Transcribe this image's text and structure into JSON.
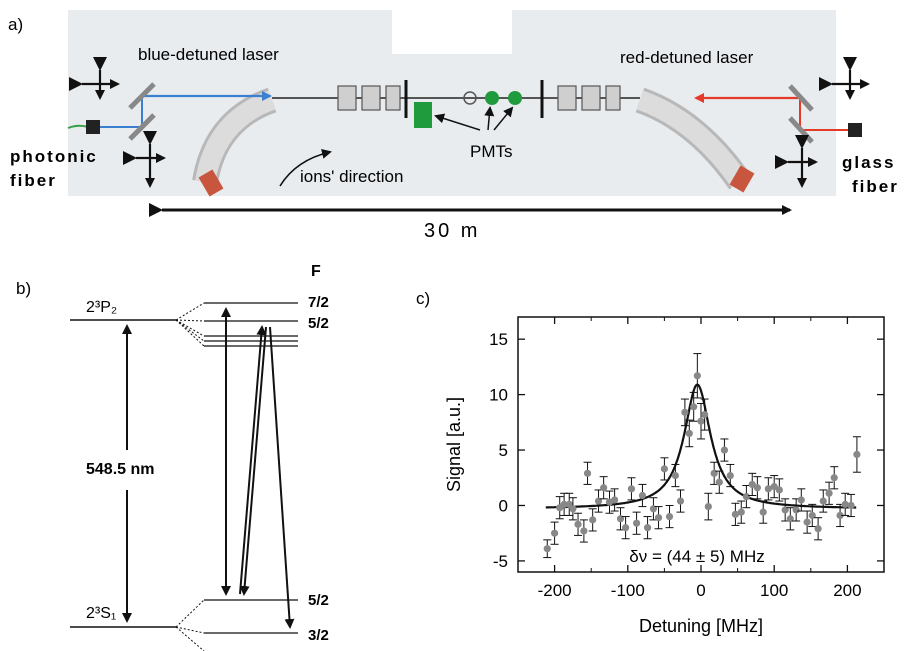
{
  "panel_a": {
    "label": "a)",
    "blue_laser": "blue-detuned laser",
    "red_laser": "red-detuned laser",
    "photonic_fiber": [
      "photonic",
      "fiber"
    ],
    "glass_fiber": [
      "glass",
      "fiber"
    ],
    "pmts": "PMTs",
    "ions_direction": "ions' direction",
    "length": "30 m",
    "colors": {
      "band": "#e9ecef",
      "blue_beam": "#3a7fd0",
      "red_beam": "#e53a2a",
      "pmt": "#1f9a3c"
    }
  },
  "panel_b": {
    "label": "b)",
    "f_header": "F",
    "upper_state": "2³P₂",
    "lower_state": "2³S₁",
    "wavelength": "548.5 nm",
    "upper_levels": [
      "7/2",
      "5/2"
    ],
    "lower_levels": [
      "5/2",
      "3/2"
    ]
  },
  "panel_c": {
    "label": "c)",
    "annotation": "δν = (44 ± 5) MHz"
  },
  "chart_data": {
    "type": "scatter",
    "xlabel": "Detuning [MHz]",
    "ylabel": "Signal [a.u.]",
    "xlim": [
      -250,
      250
    ],
    "ylim": [
      -6,
      17
    ],
    "x_ticks": [
      -200,
      -100,
      0,
      100,
      200
    ],
    "y_ticks": [
      -5,
      0,
      5,
      10,
      15
    ],
    "grid": false,
    "series": [
      {
        "kind": "points_with_error",
        "color": "#888888",
        "x": [
          -210,
          -200,
          -193,
          -187,
          -180,
          -175,
          -168,
          -160,
          -155,
          -148,
          -140,
          -133,
          -125,
          -118,
          -110,
          -103,
          -95,
          -88,
          -80,
          -73,
          -65,
          -58,
          -50,
          -43,
          -35,
          -28,
          -22,
          -16,
          -10,
          -5,
          0,
          5,
          10,
          18,
          25,
          32,
          40,
          47,
          55,
          62,
          70,
          77,
          85,
          92,
          100,
          107,
          115,
          122,
          130,
          137,
          145,
          152,
          160,
          167,
          175,
          182,
          190,
          197,
          205,
          213
        ],
        "y": [
          -3.9,
          -2.5,
          -0.2,
          0.1,
          0.1,
          -0.3,
          -1.7,
          -2.3,
          2.9,
          -1.3,
          0.4,
          1.6,
          0.3,
          0.5,
          -1.2,
          -2.0,
          1.5,
          -1.6,
          0.9,
          -2.0,
          -0.3,
          -1.1,
          3.3,
          -1.0,
          2.7,
          0.4,
          8.4,
          6.5,
          8.9,
          11.7,
          7.6,
          8.2,
          -0.1,
          2.9,
          2.1,
          5.0,
          2.7,
          -0.8,
          -0.6,
          0.8,
          1.9,
          1.6,
          -0.6,
          1.5,
          1.7,
          1.4,
          -0.4,
          -1.2,
          -0.4,
          0.5,
          -1.5,
          -0.9,
          -2.1,
          0.4,
          1.1,
          2.5,
          -0.9,
          0.1,
          0.0,
          4.6
        ],
        "err": [
          0.8,
          1.0,
          1.0,
          1.0,
          1.0,
          1.0,
          1.0,
          1.0,
          1.0,
          1.0,
          1.0,
          1.0,
          1.0,
          1.0,
          1.0,
          1.0,
          1.0,
          1.0,
          1.0,
          1.0,
          1.0,
          1.0,
          1.0,
          1.0,
          1.0,
          1.0,
          1.2,
          1.2,
          1.3,
          2.0,
          1.6,
          1.4,
          1.2,
          1.0,
          1.0,
          1.0,
          1.0,
          1.0,
          1.0,
          1.0,
          1.0,
          1.0,
          1.0,
          1.0,
          1.0,
          1.0,
          1.0,
          1.0,
          1.0,
          1.0,
          1.0,
          1.0,
          1.0,
          1.0,
          1.0,
          1.0,
          1.0,
          1.0,
          1.0,
          1.6
        ]
      },
      {
        "kind": "lorentzian_fit",
        "color": "#111111",
        "amplitude": 11.2,
        "center": -5,
        "fwhm": 44,
        "offset": -0.3
      }
    ]
  }
}
